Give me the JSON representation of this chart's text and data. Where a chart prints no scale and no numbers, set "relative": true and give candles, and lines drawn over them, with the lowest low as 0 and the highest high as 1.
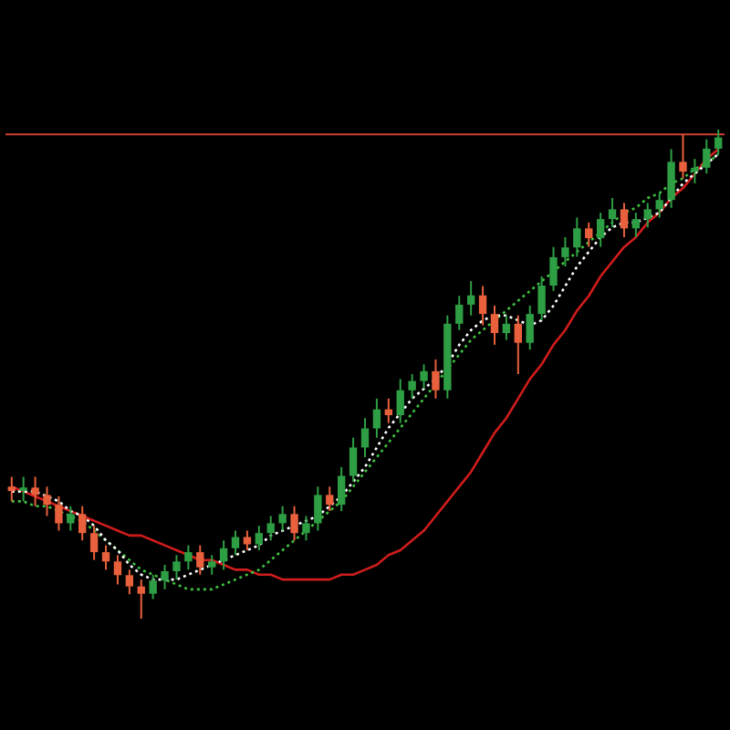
{
  "chart_data": {
    "type": "candlestick",
    "relative": true,
    "tick_labels": false,
    "marker": "none",
    "categories": [
      null,
      null,
      null,
      null,
      null,
      null,
      null,
      null,
      null,
      null,
      null,
      null,
      null,
      null,
      null,
      null,
      null,
      null,
      null,
      null,
      null,
      null,
      null,
      null,
      null,
      null,
      null,
      null,
      null,
      null,
      null,
      null,
      null,
      null,
      null,
      null,
      null,
      null,
      null,
      null,
      null,
      null,
      null,
      null,
      null,
      null,
      null,
      null,
      null,
      null,
      null,
      null,
      null,
      null,
      null,
      null,
      null,
      null,
      null,
      null,
      null
    ],
    "ohlc": [
      [
        0.27,
        0.29,
        0.24,
        0.261
      ],
      [
        0.261,
        0.29,
        0.24,
        0.268
      ],
      [
        0.268,
        0.29,
        0.23,
        0.253
      ],
      [
        0.253,
        0.27,
        0.21,
        0.233
      ],
      [
        0.233,
        0.25,
        0.18,
        0.195
      ],
      [
        0.195,
        0.23,
        0.18,
        0.214
      ],
      [
        0.214,
        0.23,
        0.16,
        0.175
      ],
      [
        0.175,
        0.19,
        0.12,
        0.136
      ],
      [
        0.136,
        0.15,
        0.1,
        0.117
      ],
      [
        0.117,
        0.13,
        0.07,
        0.089
      ],
      [
        0.089,
        0.1,
        0.05,
        0.066
      ],
      [
        0.066,
        0.08,
        0,
        0.051
      ],
      [
        0.051,
        0.09,
        0.04,
        0.078
      ],
      [
        0.078,
        0.11,
        0.06,
        0.097
      ],
      [
        0.097,
        0.13,
        0.08,
        0.117
      ],
      [
        0.117,
        0.15,
        0.1,
        0.136
      ],
      [
        0.136,
        0.15,
        0.09,
        0.105
      ],
      [
        0.105,
        0.13,
        0.09,
        0.117
      ],
      [
        0.117,
        0.16,
        0.1,
        0.144
      ],
      [
        0.144,
        0.18,
        0.13,
        0.167
      ],
      [
        0.167,
        0.18,
        0.14,
        0.152
      ],
      [
        0.152,
        0.19,
        0.14,
        0.175
      ],
      [
        0.175,
        0.21,
        0.16,
        0.195
      ],
      [
        0.195,
        0.23,
        0.18,
        0.214
      ],
      [
        0.214,
        0.23,
        0.16,
        0.175
      ],
      [
        0.175,
        0.21,
        0.16,
        0.195
      ],
      [
        0.195,
        0.27,
        0.18,
        0.253
      ],
      [
        0.253,
        0.27,
        0.22,
        0.233
      ],
      [
        0.233,
        0.31,
        0.22,
        0.292
      ],
      [
        0.292,
        0.37,
        0.28,
        0.35
      ],
      [
        0.35,
        0.41,
        0.33,
        0.389
      ],
      [
        0.389,
        0.45,
        0.37,
        0.428
      ],
      [
        0.428,
        0.45,
        0.4,
        0.416
      ],
      [
        0.416,
        0.49,
        0.4,
        0.467
      ],
      [
        0.467,
        0.5,
        0.45,
        0.486
      ],
      [
        0.486,
        0.52,
        0.47,
        0.506
      ],
      [
        0.506,
        0.53,
        0.45,
        0.467
      ],
      [
        0.467,
        0.62,
        0.45,
        0.603
      ],
      [
        0.603,
        0.66,
        0.59,
        0.642
      ],
      [
        0.642,
        0.69,
        0.62,
        0.661
      ],
      [
        0.661,
        0.68,
        0.6,
        0.623
      ],
      [
        0.623,
        0.64,
        0.56,
        0.584
      ],
      [
        0.584,
        0.62,
        0.57,
        0.603
      ],
      [
        0.603,
        0.62,
        0.5,
        0.564
      ],
      [
        0.564,
        0.64,
        0.55,
        0.623
      ],
      [
        0.623,
        0.7,
        0.61,
        0.681
      ],
      [
        0.681,
        0.76,
        0.67,
        0.739
      ],
      [
        0.739,
        0.78,
        0.72,
        0.759
      ],
      [
        0.759,
        0.82,
        0.74,
        0.798
      ],
      [
        0.798,
        0.81,
        0.76,
        0.778
      ],
      [
        0.778,
        0.83,
        0.76,
        0.817
      ],
      [
        0.817,
        0.86,
        0.8,
        0.837
      ],
      [
        0.837,
        0.85,
        0.78,
        0.798
      ],
      [
        0.798,
        0.83,
        0.78,
        0.817
      ],
      [
        0.817,
        0.85,
        0.8,
        0.837
      ],
      [
        0.837,
        0.87,
        0.82,
        0.856
      ],
      [
        0.856,
        0.96,
        0.84,
        0.934
      ],
      [
        0.934,
        0.99,
        0.9,
        0.914
      ],
      [
        0.914,
        0.94,
        0.89,
        0.922
      ],
      [
        0.922,
        0.98,
        0.91,
        0.961
      ],
      [
        0.961,
        1,
        0.95,
        0.984
      ]
    ],
    "colors": [
      "#e8603c",
      "#2e9e44",
      "#e8603c",
      "#e8603c",
      "#e8603c",
      "#2e9e44",
      "#e8603c",
      "#e8603c",
      "#e8603c",
      "#e8603c",
      "#e8603c",
      "#e8603c",
      "#2e9e44",
      "#2e9e44",
      "#2e9e44",
      "#2e9e44",
      "#e8603c",
      "#2e9e44",
      "#2e9e44",
      "#2e9e44",
      "#e8603c",
      "#2e9e44",
      "#2e9e44",
      "#2e9e44",
      "#e8603c",
      "#2e9e44",
      "#2e9e44",
      "#e8603c",
      "#2e9e44",
      "#2e9e44",
      "#2e9e44",
      "#2e9e44",
      "#e8603c",
      "#2e9e44",
      "#2e9e44",
      "#2e9e44",
      "#e8603c",
      "#2e9e44",
      "#2e9e44",
      "#2e9e44",
      "#e8603c",
      "#e8603c",
      "#2e9e44",
      "#e8603c",
      "#2e9e44",
      "#2e9e44",
      "#2e9e44",
      "#2e9e44",
      "#2e9e44",
      "#e8603c",
      "#2e9e44",
      "#2e9e44",
      "#e8603c",
      "#2e9e44",
      "#2e9e44",
      "#2e9e44",
      "#2e9e44",
      "#e8603c",
      "#2e9e44",
      "#2e9e44",
      "#2e9e44"
    ],
    "series": [
      {
        "type": "line",
        "color": "#d01c1c",
        "line_style": "solid",
        "values": [
          0.27,
          0.26,
          0.25,
          0.24,
          0.23,
          0.22,
          0.21,
          0.2,
          0.19,
          0.18,
          0.17,
          0.17,
          0.16,
          0.15,
          0.14,
          0.13,
          0.12,
          0.12,
          0.11,
          0.1,
          0.1,
          0.09,
          0.09,
          0.08,
          0.08,
          0.08,
          0.08,
          0.08,
          0.09,
          0.09,
          0.1,
          0.11,
          0.13,
          0.14,
          0.16,
          0.18,
          0.21,
          0.24,
          0.27,
          0.3,
          0.34,
          0.38,
          0.41,
          0.45,
          0.49,
          0.52,
          0.56,
          0.59,
          0.63,
          0.66,
          0.7,
          0.73,
          0.76,
          0.78,
          0.81,
          0.83,
          0.86,
          0.88,
          0.91,
          0.94,
          0.96
        ]
      },
      {
        "type": "line",
        "color": "#3fbf3f",
        "line_style": "dotted",
        "values": [
          0.24,
          0.24,
          0.23,
          0.23,
          0.22,
          0.21,
          0.2,
          0.18,
          0.16,
          0.14,
          0.12,
          0.1,
          0.09,
          0.08,
          0.07,
          0.06,
          0.06,
          0.06,
          0.07,
          0.08,
          0.09,
          0.1,
          0.12,
          0.14,
          0.16,
          0.18,
          0.2,
          0.22,
          0.24,
          0.27,
          0.3,
          0.33,
          0.36,
          0.39,
          0.42,
          0.45,
          0.48,
          0.51,
          0.54,
          0.57,
          0.59,
          0.61,
          0.63,
          0.65,
          0.67,
          0.69,
          0.71,
          0.73,
          0.75,
          0.77,
          0.79,
          0.81,
          0.83,
          0.84,
          0.86,
          0.87,
          0.89,
          0.9,
          0.92,
          0.93,
          0.95
        ]
      },
      {
        "type": "line",
        "color": "#ffffff",
        "line_style": "dotted",
        "values": [
          0.26,
          0.26,
          0.26,
          0.25,
          0.24,
          0.22,
          0.21,
          0.19,
          0.16,
          0.14,
          0.11,
          0.09,
          0.08,
          0.08,
          0.08,
          0.09,
          0.1,
          0.11,
          0.12,
          0.13,
          0.14,
          0.15,
          0.17,
          0.18,
          0.19,
          0.2,
          0.21,
          0.23,
          0.25,
          0.28,
          0.31,
          0.35,
          0.39,
          0.42,
          0.45,
          0.47,
          0.49,
          0.52,
          0.56,
          0.59,
          0.61,
          0.62,
          0.62,
          0.61,
          0.6,
          0.61,
          0.64,
          0.68,
          0.72,
          0.75,
          0.78,
          0.8,
          0.81,
          0.81,
          0.82,
          0.83,
          0.86,
          0.89,
          0.91,
          0.93,
          0.95
        ]
      }
    ],
    "ref_lines": [
      {
        "axis": "y",
        "value": 0.99,
        "color": "#d04030",
        "line_style": "solid"
      }
    ]
  }
}
